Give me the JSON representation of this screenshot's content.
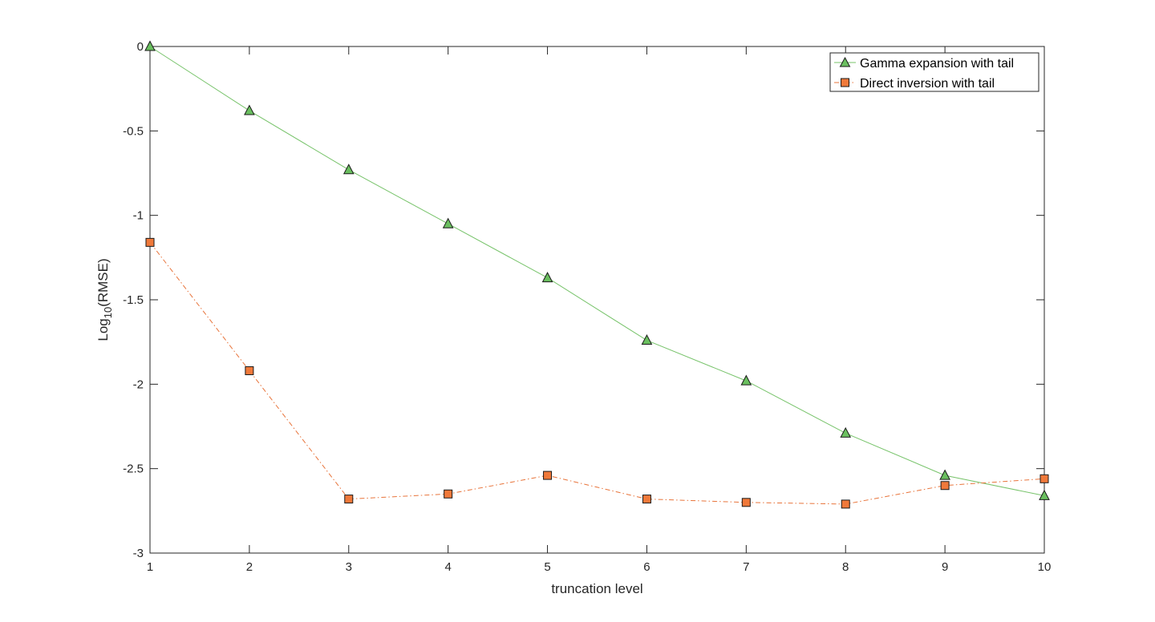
{
  "chart_data": {
    "type": "line",
    "x": [
      1,
      2,
      3,
      4,
      5,
      6,
      7,
      8,
      9,
      10
    ],
    "series": [
      {
        "name": "Gamma expansion with tail",
        "values": [
          0,
          -0.38,
          -0.73,
          -1.05,
          -1.37,
          -1.74,
          -1.98,
          -2.29,
          -2.54,
          -2.66
        ],
        "color": "#77c36a",
        "marker": "triangle",
        "marker_fill": "#6abf5f",
        "line_style": "solid"
      },
      {
        "name": "Direct inversion with tail",
        "values": [
          -1.16,
          -1.92,
          -2.68,
          -2.65,
          -2.54,
          -2.68,
          -2.7,
          -2.71,
          -2.6,
          -2.56
        ],
        "color": "#e8743b",
        "marker": "square",
        "marker_fill": "#f0793a",
        "line_style": "dash-dot"
      }
    ],
    "xlabel": "truncation level",
    "ylabel": "Log",
    "ylabel_sub": "10",
    "ylabel_suffix": "(RMSE)",
    "xlim": [
      1,
      10
    ],
    "ylim": [
      -3,
      0
    ],
    "xticks": [
      "1",
      "2",
      "3",
      "4",
      "5",
      "6",
      "7",
      "8",
      "9",
      "10"
    ],
    "yticks": [
      "0",
      "-0.5",
      "-1",
      "-1.5",
      "-2",
      "-2.5",
      "-3"
    ],
    "ytick_values": [
      0,
      -0.5,
      -1,
      -1.5,
      -2,
      -2.5,
      -3
    ],
    "grid": false,
    "legend_position": "top-right"
  }
}
